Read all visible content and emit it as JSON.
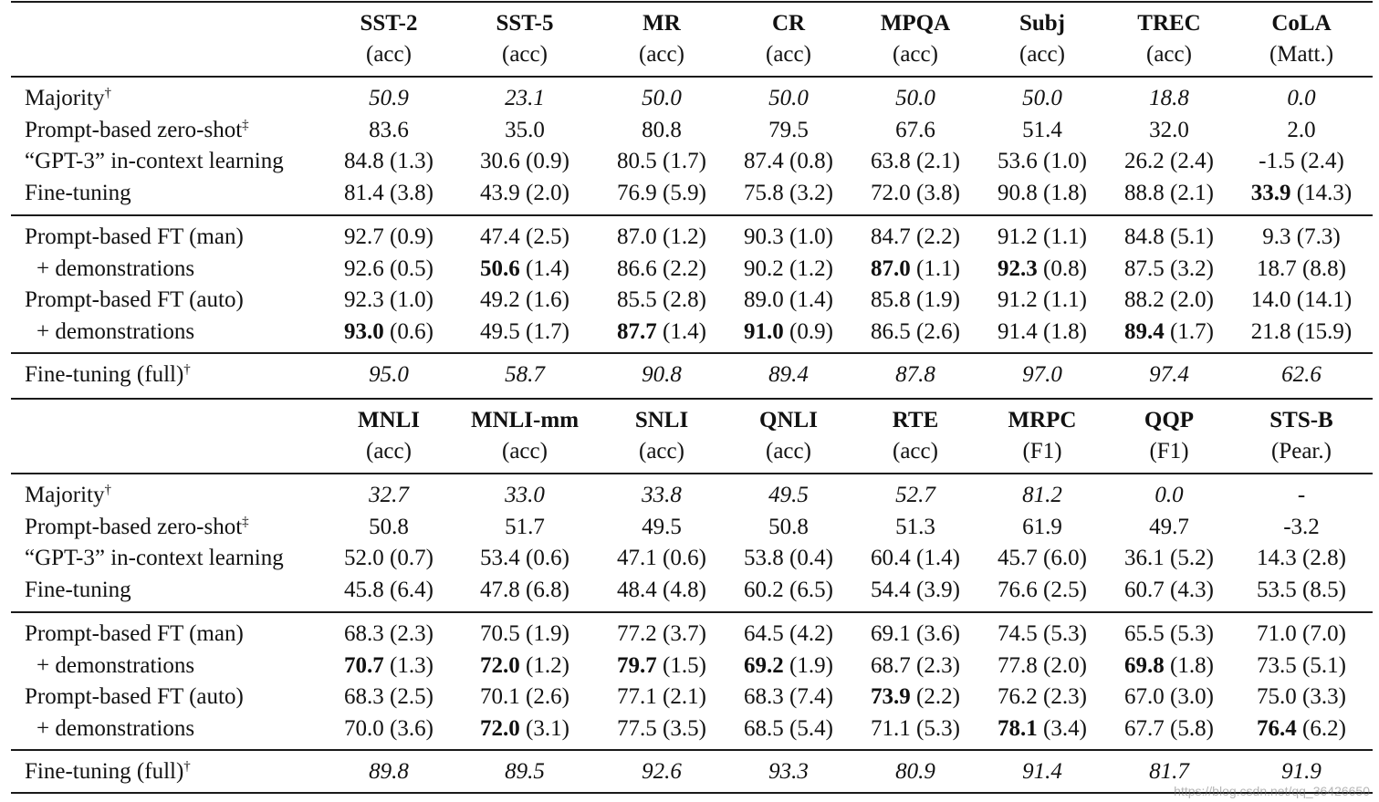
{
  "tables": [
    {
      "columns": [
        {
          "name": "SST-2",
          "metric": "(acc)"
        },
        {
          "name": "SST-5",
          "metric": "(acc)"
        },
        {
          "name": "MR",
          "metric": "(acc)"
        },
        {
          "name": "CR",
          "metric": "(acc)"
        },
        {
          "name": "MPQA",
          "metric": "(acc)"
        },
        {
          "name": "Subj",
          "metric": "(acc)"
        },
        {
          "name": "TREC",
          "metric": "(acc)"
        },
        {
          "name": "CoLA",
          "metric": "(Matt.)"
        }
      ],
      "groups": [
        [
          {
            "label": "Majority",
            "sup": "†",
            "italic": true,
            "cells": [
              {
                "v": "50.9"
              },
              {
                "v": "23.1"
              },
              {
                "v": "50.0"
              },
              {
                "v": "50.0"
              },
              {
                "v": "50.0"
              },
              {
                "v": "50.0"
              },
              {
                "v": "18.8"
              },
              {
                "v": "0.0"
              }
            ]
          },
          {
            "label": "Prompt-based zero-shot",
            "sup": "‡",
            "cells": [
              {
                "v": "83.6"
              },
              {
                "v": "35.0"
              },
              {
                "v": "80.8"
              },
              {
                "v": "79.5"
              },
              {
                "v": "67.6"
              },
              {
                "v": "51.4"
              },
              {
                "v": "32.0"
              },
              {
                "v": "2.0"
              }
            ]
          },
          {
            "label": "“GPT-3” in-context learning",
            "cells": [
              {
                "v": "84.8",
                "s": "(1.3)"
              },
              {
                "v": "30.6",
                "s": "(0.9)"
              },
              {
                "v": "80.5",
                "s": "(1.7)"
              },
              {
                "v": "87.4",
                "s": "(0.8)"
              },
              {
                "v": "63.8",
                "s": "(2.1)"
              },
              {
                "v": "53.6",
                "s": "(1.0)"
              },
              {
                "v": "26.2",
                "s": "(2.4)"
              },
              {
                "v": "-1.5",
                "s": "(2.4)"
              }
            ]
          },
          {
            "label": "Fine-tuning",
            "cells": [
              {
                "v": "81.4",
                "s": "(3.8)"
              },
              {
                "v": "43.9",
                "s": "(2.0)"
              },
              {
                "v": "76.9",
                "s": "(5.9)"
              },
              {
                "v": "75.8",
                "s": "(3.2)"
              },
              {
                "v": "72.0",
                "s": "(3.8)"
              },
              {
                "v": "90.8",
                "s": "(1.8)"
              },
              {
                "v": "88.8",
                "s": "(2.1)"
              },
              {
                "v": "33.9",
                "s": "(14.3)",
                "bold": true
              }
            ]
          }
        ],
        [
          {
            "label": "Prompt-based FT (man)",
            "cells": [
              {
                "v": "92.7",
                "s": "(0.9)"
              },
              {
                "v": "47.4",
                "s": "(2.5)"
              },
              {
                "v": "87.0",
                "s": "(1.2)"
              },
              {
                "v": "90.3",
                "s": "(1.0)"
              },
              {
                "v": "84.7",
                "s": "(2.2)"
              },
              {
                "v": "91.2",
                "s": "(1.1)"
              },
              {
                "v": "84.8",
                "s": "(5.1)"
              },
              {
                "v": "9.3",
                "s": "(7.3)"
              }
            ]
          },
          {
            "label": "+ demonstrations",
            "indent": true,
            "cells": [
              {
                "v": "92.6",
                "s": "(0.5)"
              },
              {
                "v": "50.6",
                "s": "(1.4)",
                "bold": true
              },
              {
                "v": "86.6",
                "s": "(2.2)"
              },
              {
                "v": "90.2",
                "s": "(1.2)"
              },
              {
                "v": "87.0",
                "s": "(1.1)",
                "bold": true
              },
              {
                "v": "92.3",
                "s": "(0.8)",
                "bold": true
              },
              {
                "v": "87.5",
                "s": "(3.2)"
              },
              {
                "v": "18.7",
                "s": "(8.8)"
              }
            ]
          },
          {
            "label": "Prompt-based FT (auto)",
            "cells": [
              {
                "v": "92.3",
                "s": "(1.0)"
              },
              {
                "v": "49.2",
                "s": "(1.6)"
              },
              {
                "v": "85.5",
                "s": "(2.8)"
              },
              {
                "v": "89.0",
                "s": "(1.4)"
              },
              {
                "v": "85.8",
                "s": "(1.9)"
              },
              {
                "v": "91.2",
                "s": "(1.1)"
              },
              {
                "v": "88.2",
                "s": "(2.0)"
              },
              {
                "v": "14.0",
                "s": "(14.1)"
              }
            ]
          },
          {
            "label": "+ demonstrations",
            "indent": true,
            "cells": [
              {
                "v": "93.0",
                "s": "(0.6)",
                "bold": true
              },
              {
                "v": "49.5",
                "s": "(1.7)"
              },
              {
                "v": "87.7",
                "s": "(1.4)",
                "bold": true
              },
              {
                "v": "91.0",
                "s": "(0.9)",
                "bold": true
              },
              {
                "v": "86.5",
                "s": "(2.6)"
              },
              {
                "v": "91.4",
                "s": "(1.8)"
              },
              {
                "v": "89.4",
                "s": "(1.7)",
                "bold": true
              },
              {
                "v": "21.8",
                "s": "(15.9)"
              }
            ]
          }
        ],
        [
          {
            "label": "Fine-tuning (full)",
            "sup": "†",
            "italic": true,
            "cells": [
              {
                "v": "95.0"
              },
              {
                "v": "58.7"
              },
              {
                "v": "90.8"
              },
              {
                "v": "89.4"
              },
              {
                "v": "87.8"
              },
              {
                "v": "97.0"
              },
              {
                "v": "97.4"
              },
              {
                "v": "62.6"
              }
            ]
          }
        ]
      ]
    },
    {
      "columns": [
        {
          "name": "MNLI",
          "metric": "(acc)"
        },
        {
          "name": "MNLI-mm",
          "metric": "(acc)"
        },
        {
          "name": "SNLI",
          "metric": "(acc)"
        },
        {
          "name": "QNLI",
          "metric": "(acc)"
        },
        {
          "name": "RTE",
          "metric": "(acc)"
        },
        {
          "name": "MRPC",
          "metric": "(F1)"
        },
        {
          "name": "QQP",
          "metric": "(F1)"
        },
        {
          "name": "STS-B",
          "metric": "(Pear.)"
        }
      ],
      "groups": [
        [
          {
            "label": "Majority",
            "sup": "†",
            "italic": true,
            "cells": [
              {
                "v": "32.7"
              },
              {
                "v": "33.0"
              },
              {
                "v": "33.8"
              },
              {
                "v": "49.5"
              },
              {
                "v": "52.7"
              },
              {
                "v": "81.2"
              },
              {
                "v": "0.0"
              },
              {
                "v": "-"
              }
            ]
          },
          {
            "label": "Prompt-based zero-shot",
            "sup": "‡",
            "cells": [
              {
                "v": "50.8"
              },
              {
                "v": "51.7"
              },
              {
                "v": "49.5"
              },
              {
                "v": "50.8"
              },
              {
                "v": "51.3"
              },
              {
                "v": "61.9"
              },
              {
                "v": "49.7"
              },
              {
                "v": "-3.2"
              }
            ]
          },
          {
            "label": "“GPT-3” in-context learning",
            "cells": [
              {
                "v": "52.0",
                "s": "(0.7)"
              },
              {
                "v": "53.4",
                "s": "(0.6)"
              },
              {
                "v": "47.1",
                "s": "(0.6)"
              },
              {
                "v": "53.8",
                "s": "(0.4)"
              },
              {
                "v": "60.4",
                "s": "(1.4)"
              },
              {
                "v": "45.7",
                "s": "(6.0)"
              },
              {
                "v": "36.1",
                "s": "(5.2)"
              },
              {
                "v": "14.3",
                "s": "(2.8)"
              }
            ]
          },
          {
            "label": "Fine-tuning",
            "cells": [
              {
                "v": "45.8",
                "s": "(6.4)"
              },
              {
                "v": "47.8",
                "s": "(6.8)"
              },
              {
                "v": "48.4",
                "s": "(4.8)"
              },
              {
                "v": "60.2",
                "s": "(6.5)"
              },
              {
                "v": "54.4",
                "s": "(3.9)"
              },
              {
                "v": "76.6",
                "s": "(2.5)"
              },
              {
                "v": "60.7",
                "s": "(4.3)"
              },
              {
                "v": "53.5",
                "s": "(8.5)"
              }
            ]
          }
        ],
        [
          {
            "label": "Prompt-based FT (man)",
            "cells": [
              {
                "v": "68.3",
                "s": "(2.3)"
              },
              {
                "v": "70.5",
                "s": "(1.9)"
              },
              {
                "v": "77.2",
                "s": "(3.7)"
              },
              {
                "v": "64.5",
                "s": "(4.2)"
              },
              {
                "v": "69.1",
                "s": "(3.6)"
              },
              {
                "v": "74.5",
                "s": "(5.3)"
              },
              {
                "v": "65.5",
                "s": "(5.3)"
              },
              {
                "v": "71.0",
                "s": "(7.0)"
              }
            ]
          },
          {
            "label": "+ demonstrations",
            "indent": true,
            "cells": [
              {
                "v": "70.7",
                "s": "(1.3)",
                "bold": true
              },
              {
                "v": "72.0",
                "s": "(1.2)",
                "bold": true
              },
              {
                "v": "79.7",
                "s": "(1.5)",
                "bold": true
              },
              {
                "v": "69.2",
                "s": "(1.9)",
                "bold": true
              },
              {
                "v": "68.7",
                "s": "(2.3)"
              },
              {
                "v": "77.8",
                "s": "(2.0)"
              },
              {
                "v": "69.8",
                "s": "(1.8)",
                "bold": true
              },
              {
                "v": "73.5",
                "s": "(5.1)"
              }
            ]
          },
          {
            "label": "Prompt-based FT (auto)",
            "cells": [
              {
                "v": "68.3",
                "s": "(2.5)"
              },
              {
                "v": "70.1",
                "s": "(2.6)"
              },
              {
                "v": "77.1",
                "s": "(2.1)"
              },
              {
                "v": "68.3",
                "s": "(7.4)"
              },
              {
                "v": "73.9",
                "s": "(2.2)",
                "bold": true
              },
              {
                "v": "76.2",
                "s": "(2.3)"
              },
              {
                "v": "67.0",
                "s": "(3.0)"
              },
              {
                "v": "75.0",
                "s": "(3.3)"
              }
            ]
          },
          {
            "label": "+ demonstrations",
            "indent": true,
            "cells": [
              {
                "v": "70.0",
                "s": "(3.6)"
              },
              {
                "v": "72.0",
                "s": "(3.1)",
                "bold": true
              },
              {
                "v": "77.5",
                "s": "(3.5)"
              },
              {
                "v": "68.5",
                "s": "(5.4)"
              },
              {
                "v": "71.1",
                "s": "(5.3)"
              },
              {
                "v": "78.1",
                "s": "(3.4)",
                "bold": true
              },
              {
                "v": "67.7",
                "s": "(5.8)"
              },
              {
                "v": "76.4",
                "s": "(6.2)",
                "bold": true
              }
            ]
          }
        ],
        [
          {
            "label": "Fine-tuning (full)",
            "sup": "†",
            "italic": true,
            "cells": [
              {
                "v": "89.8"
              },
              {
                "v": "89.5"
              },
              {
                "v": "92.6"
              },
              {
                "v": "93.3"
              },
              {
                "v": "80.9"
              },
              {
                "v": "91.4"
              },
              {
                "v": "81.7"
              },
              {
                "v": "91.9"
              }
            ]
          }
        ]
      ]
    }
  ],
  "watermark": "https://blog.csdn.net/qq_36426650"
}
